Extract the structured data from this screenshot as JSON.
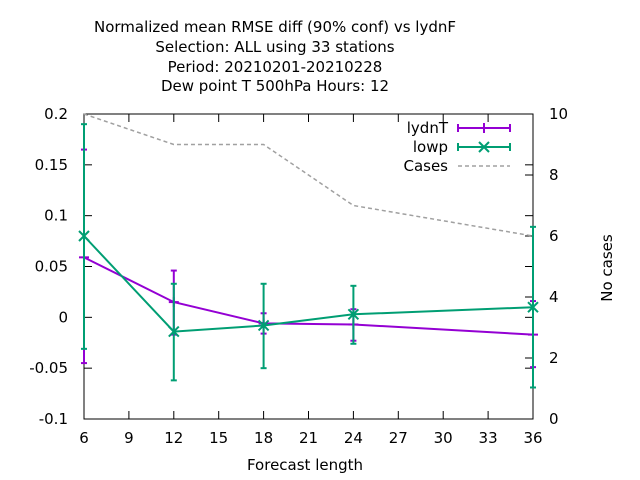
{
  "chart_data": {
    "type": "line",
    "title_lines": [
      "Normalized mean RMSE diff (90% conf) vs lydnF",
      "Selection: ALL using    33 stations",
      "Period: 20210201-20210228",
      "Dew point T 500hPa   Hours:  12"
    ],
    "xlabel": "Forecast length",
    "ylabel_right": "No cases",
    "xlim": [
      6,
      36
    ],
    "ylim": [
      -0.1,
      0.2
    ],
    "y2lim": [
      0,
      10
    ],
    "xticks": [
      6,
      9,
      12,
      15,
      18,
      21,
      24,
      27,
      30,
      33,
      36
    ],
    "yticks": [
      "-0.1",
      "-0.05",
      "0",
      "0.05",
      "0.1",
      "0.15",
      "0.2"
    ],
    "yticks_values": [
      -0.1,
      -0.05,
      0,
      0.05,
      0.1,
      0.15,
      0.2
    ],
    "y2ticks": [
      0,
      2,
      4,
      6,
      8,
      10
    ],
    "legend_position": "top-right",
    "series": [
      {
        "name": "lydnT",
        "color": "#9400d3",
        "marker": "plus",
        "x": [
          6,
          12,
          18,
          24,
          36
        ],
        "y": [
          0.059,
          0.015,
          -0.006,
          -0.007,
          -0.017
        ],
        "err_low": [
          -0.045,
          -0.017,
          -0.016,
          -0.023,
          -0.049
        ],
        "err_high": [
          0.165,
          0.046,
          0.004,
          0.008,
          0.016
        ]
      },
      {
        "name": "lowp",
        "color": "#009e73",
        "marker": "cross",
        "x": [
          6,
          12,
          18,
          24,
          36
        ],
        "y": [
          0.08,
          -0.014,
          -0.008,
          0.003,
          0.01
        ],
        "err_low": [
          -0.031,
          -0.062,
          -0.05,
          -0.026,
          -0.069
        ],
        "err_high": [
          0.19,
          0.033,
          0.033,
          0.031,
          0.089
        ]
      },
      {
        "name": "Cases",
        "color": "#a0a0a0",
        "style": "dashed",
        "axis": "y2",
        "x": [
          6,
          12,
          18,
          24,
          36
        ],
        "y": [
          10,
          9,
          9,
          7,
          6
        ]
      }
    ]
  }
}
